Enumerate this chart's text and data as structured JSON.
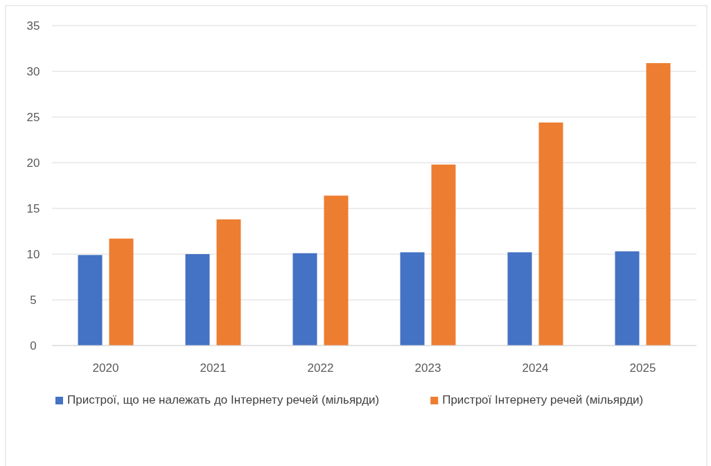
{
  "chart_data": {
    "type": "bar",
    "categories": [
      "2020",
      "2021",
      "2022",
      "2023",
      "2024",
      "2025"
    ],
    "series": [
      {
        "name": "Пристрої, що не належать до Інтернету речей (мільярди)",
        "color": "#4472c4",
        "values": [
          9.9,
          10.0,
          10.1,
          10.2,
          10.2,
          10.3
        ]
      },
      {
        "name": "Пристрої Інтернету речей (мільярди)",
        "color": "#ed7d31",
        "values": [
          11.7,
          13.8,
          16.4,
          19.8,
          24.4,
          30.9
        ]
      }
    ],
    "ylim": [
      0,
      35
    ],
    "yticks": [
      0,
      5,
      10,
      15,
      20,
      25,
      30,
      35
    ],
    "grid": "y",
    "legend": "bottom"
  }
}
